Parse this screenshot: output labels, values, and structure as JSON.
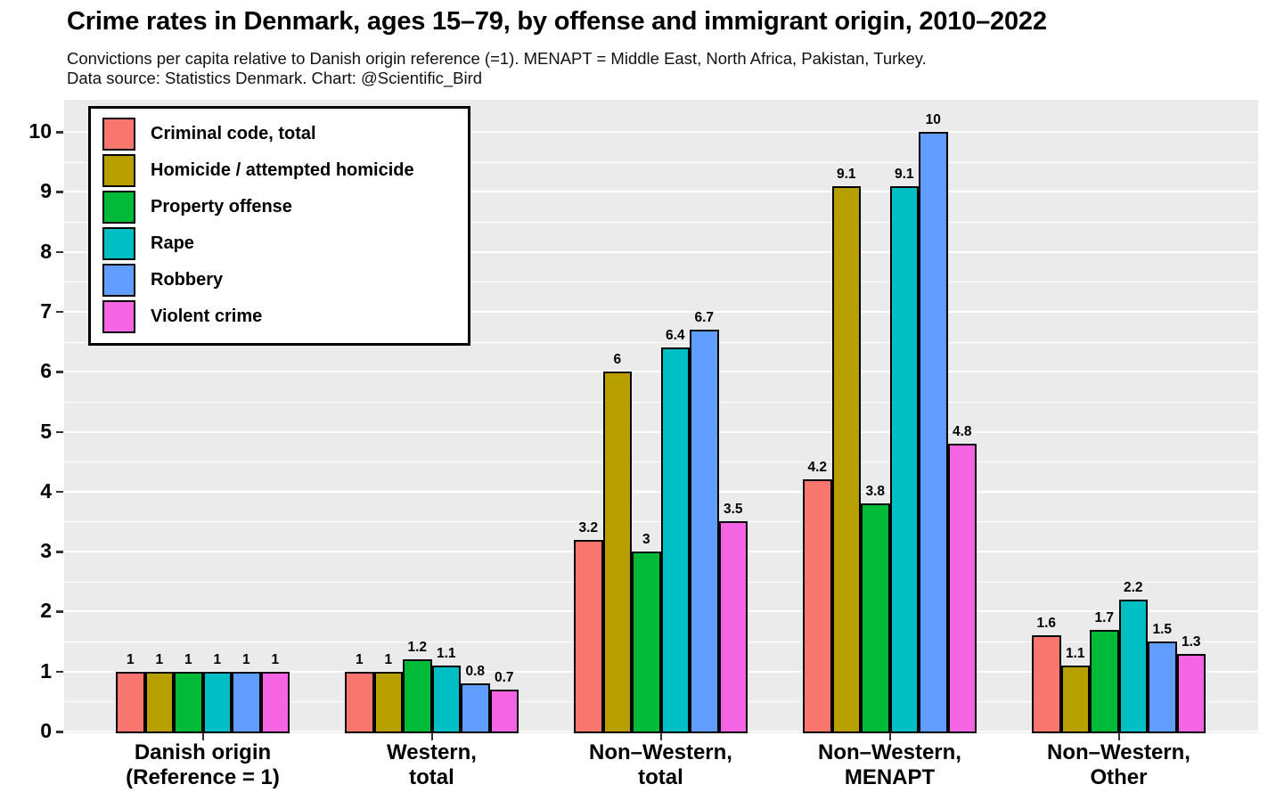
{
  "header": {
    "title": "Crime rates in Denmark, ages 15–79, by offense and immigrant origin, 2010–2022",
    "subtitle": "Convictions per capita relative to Danish origin reference (=1). MENAPT = Middle East, North Africa, Pakistan, Turkey.\nData source: Statistics Denmark.  Chart: @Scientific_Bird"
  },
  "chart_data": {
    "type": "bar",
    "categories": [
      "Danish origin\n(Reference = 1)",
      "Western,\ntotal",
      "Non–Western,\ntotal",
      "Non–Western,\nMENAPT",
      "Non–Western,\nOther"
    ],
    "series": [
      {
        "name": "Criminal code, total",
        "color": "#F8766D",
        "values": [
          1,
          1,
          3.2,
          4.2,
          1.6
        ]
      },
      {
        "name": "Homicide / attempted homicide",
        "color": "#B79F00",
        "values": [
          1,
          1,
          6,
          9.1,
          1.1
        ]
      },
      {
        "name": "Property offense",
        "color": "#00BA38",
        "values": [
          1,
          1.2,
          3,
          3.8,
          1.7
        ]
      },
      {
        "name": "Rape",
        "color": "#00BFC4",
        "values": [
          1,
          1.1,
          6.4,
          9.1,
          2.2
        ]
      },
      {
        "name": "Robbery",
        "color": "#619CFF",
        "values": [
          1,
          0.8,
          6.7,
          10,
          1.5
        ]
      },
      {
        "name": "Violent crime",
        "color": "#F564E3",
        "values": [
          1,
          0.7,
          3.5,
          4.8,
          1.3
        ]
      }
    ],
    "ylim": [
      0,
      10
    ],
    "yticks": [
      0,
      1,
      2,
      3,
      4,
      5,
      6,
      7,
      8,
      9,
      10
    ],
    "bar_value_labels_shown": true,
    "legend_position": "top-left-inside",
    "panel_background": "#EBEBEB",
    "gridline_color": "#FFFFFF",
    "bar_border_color": "#000000",
    "grid": "major and minor horizontal gridlines"
  }
}
